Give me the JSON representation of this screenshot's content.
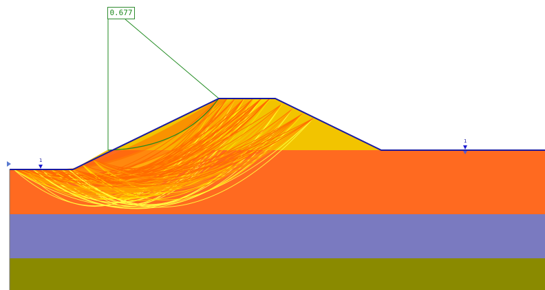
{
  "factor_of_safety": {
    "value": "0.677"
  },
  "water_table_markers": [
    {
      "label": "1"
    },
    {
      "label": "1"
    }
  ],
  "colors": {
    "sky": "#ffffff",
    "layer_orange": "#ff6a20",
    "layer_purple": "#7a7ac0",
    "layer_olive": "#8a8a00",
    "embankment_yellow": "#f2c400",
    "slip_critical": "#1f8a1f",
    "slip_high": "#ff6a00",
    "slip_mid": "#ffa000",
    "slip_low": "#ffe000",
    "slip_lowest": "#ffff40",
    "boundary": "#1a1aa0"
  }
}
